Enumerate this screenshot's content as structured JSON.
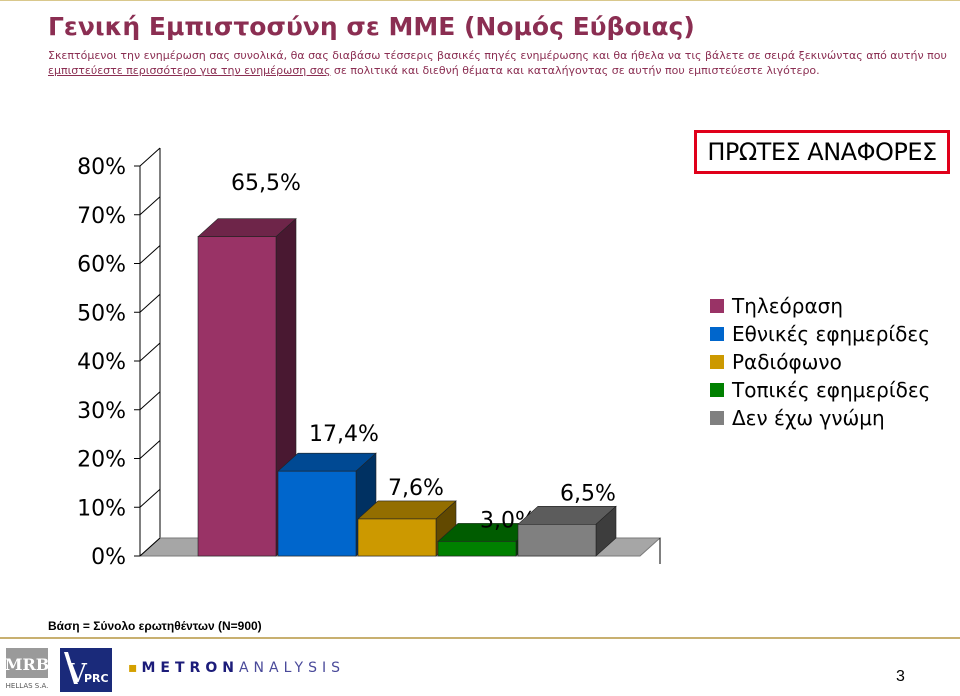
{
  "header": {
    "title": "Γενική Εμπιστοσύνη σε ΜΜΕ (Νομός Εύβοιας)",
    "subtitle_part1": "Σκεπτόμενοι την ενημέρωση σας συνολικά, θα σας διαβάσω τέσσερις βασικές πηγές ενημέρωσης και θα ήθελα να τις βάλετε σε σειρά ξεκινώντας από αυτήν που ",
    "subtitle_underlined": "εμπιστεύεστε περισσότερο για την ενημέρωση σας",
    "subtitle_part2": " σε πολιτικά και διεθνή θέματα και καταλήγοντας σε αυτήν που εμπιστεύεστε λιγότερο."
  },
  "badge": {
    "label": "ΠΡΩΤΕΣ ΑΝΑΦΟΡΕΣ",
    "border_color": "#e0001a"
  },
  "chart_data": {
    "type": "bar",
    "categories": [
      "Τηλεόραση",
      "Εθνικές εφημερίδες",
      "Ραδιόφωνο",
      "Τοπικές εφημερίδες",
      "Δεν έχω γνώμη"
    ],
    "values": [
      65.5,
      17.4,
      7.6,
      3.0,
      6.5
    ],
    "data_labels": [
      "65,5%",
      "17,4%",
      "7,6%",
      "3,0%",
      "6,5%"
    ],
    "colors": [
      "#993366",
      "#0066cc",
      "#cc9900",
      "#008000",
      "#808080"
    ],
    "y_ticks": [
      "0%",
      "10%",
      "20%",
      "30%",
      "40%",
      "50%",
      "60%",
      "70%",
      "80%"
    ],
    "ylim": [
      0,
      80
    ],
    "legend_position": "right",
    "three_d": true
  },
  "footer": {
    "base_note": "Βάση = Σύνολο ερωτηθέντων (Ν=900)",
    "page_number": "3",
    "logos": {
      "mrb_line1": "MRB",
      "mrb_line2": "HELLAS S.A.",
      "vprc_v": "V",
      "vprc_rest": "PRC",
      "metron_part1": "METRON",
      "metron_part2": "ANALYSIS"
    }
  }
}
